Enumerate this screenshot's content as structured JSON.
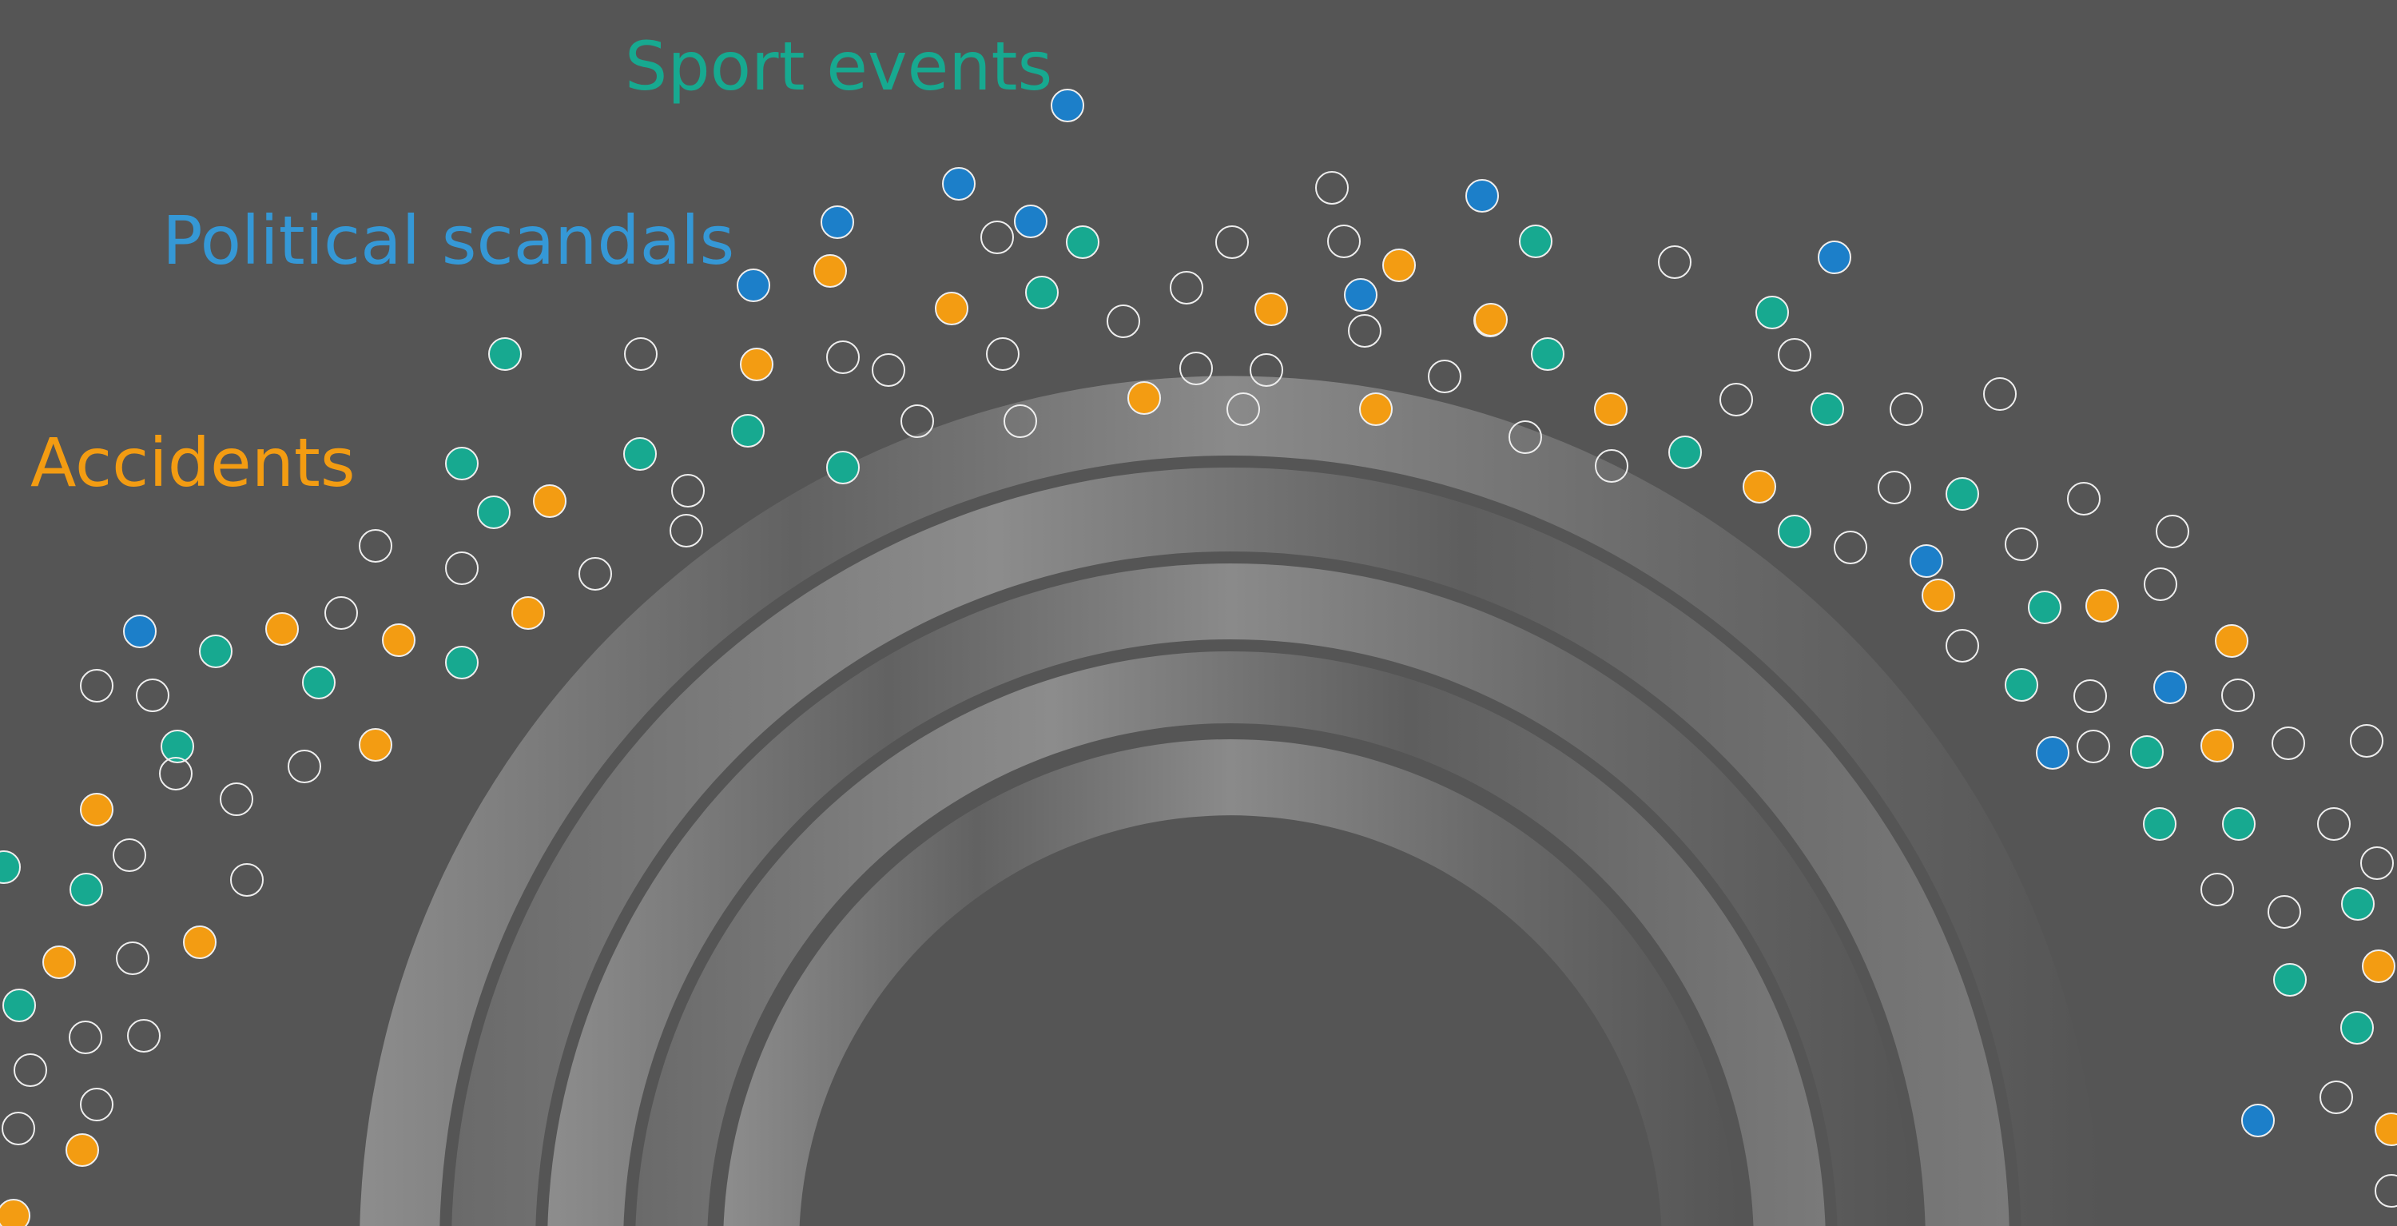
{
  "categories": [
    {
      "name": "Sport events",
      "color": "#17a990"
    },
    {
      "name": "Political scandals",
      "color": "#3598d6"
    },
    {
      "name": "Accidents",
      "color": "#f39c12"
    }
  ],
  "colors": {
    "background": "#555555",
    "dot_outline": "#eeeeee",
    "sport": "#17a990",
    "political": "#1c7fc9",
    "accident": "#f39c12",
    "arc_light": "#8a8a8a",
    "arc_dark": "#5f5f5f"
  },
  "dot_kinds": {
    "sport": "Sport events",
    "political": "Political scandals",
    "accident": "Accidents",
    "other": "empty"
  }
}
